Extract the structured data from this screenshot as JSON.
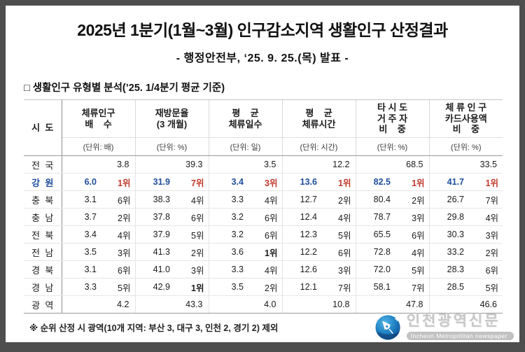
{
  "header": {
    "title": "2025년 1분기(1월~3월) 인구감소지역 생활인구 산정결과",
    "subtitle": "- 행정안전부, ‘25. 9. 25.(목) 발표 -"
  },
  "section": {
    "heading": "□ 생활인구 유형별 분석(’25. 1/4분기 평균 기준)"
  },
  "table": {
    "columns": [
      {
        "id": "sido",
        "title_lines": [
          "시  도"
        ],
        "unit": ""
      },
      {
        "id": "multiple",
        "title_lines": [
          "체류인구",
          "배    수"
        ],
        "unit": "(단위: 배)"
      },
      {
        "id": "revisit",
        "title_lines": [
          "재방문율",
          "(3 개월)"
        ],
        "unit": "(단위: %)"
      },
      {
        "id": "stay-days",
        "title_lines": [
          "평    균",
          "체류일수"
        ],
        "unit": "(단위: 일)"
      },
      {
        "id": "stay-hours",
        "title_lines": [
          "평    균",
          "체류시간"
        ],
        "unit": "(단위: 시간)"
      },
      {
        "id": "other-region",
        "title_lines": [
          "타 시 도",
          "거 주 자",
          "비    중"
        ],
        "unit": "(단위: %)"
      },
      {
        "id": "card-spend",
        "title_lines": [
          "체 류 인 구",
          "카드사용액",
          "비    중"
        ],
        "unit": "(단위: %)"
      }
    ],
    "rows": [
      {
        "region": "전  국",
        "highlight": false,
        "values": [
          "3.8",
          "39.3",
          "3.5",
          "12.2",
          "68.5",
          "33.5"
        ]
      },
      {
        "region": "강  원",
        "highlight": true,
        "cells": [
          [
            "6.0",
            "1위"
          ],
          [
            "31.9",
            "7위"
          ],
          [
            "3.4",
            "3위"
          ],
          [
            "13.6",
            "1위"
          ],
          [
            "82.5",
            "1위"
          ],
          [
            "41.7",
            "1위"
          ]
        ]
      },
      {
        "region": "충  북",
        "highlight": false,
        "cells": [
          [
            "3.1",
            "6위"
          ],
          [
            "38.3",
            "4위"
          ],
          [
            "3.3",
            "4위"
          ],
          [
            "12.7",
            "2위"
          ],
          [
            "80.4",
            "2위"
          ],
          [
            "26.7",
            "7위"
          ]
        ]
      },
      {
        "region": "충  남",
        "highlight": false,
        "cells": [
          [
            "3.7",
            "2위"
          ],
          [
            "37.8",
            "6위"
          ],
          [
            "3.2",
            "6위"
          ],
          [
            "12.4",
            "4위"
          ],
          [
            "78.7",
            "3위"
          ],
          [
            "29.8",
            "4위"
          ]
        ]
      },
      {
        "region": "전  북",
        "highlight": false,
        "cells": [
          [
            "3.4",
            "4위"
          ],
          [
            "37.9",
            "5위"
          ],
          [
            "3.2",
            "6위"
          ],
          [
            "12.3",
            "5위"
          ],
          [
            "65.5",
            "6위"
          ],
          [
            "30.3",
            "3위"
          ]
        ]
      },
      {
        "region": "전  남",
        "highlight": false,
        "cells": [
          [
            "3.5",
            "3위"
          ],
          [
            "41.3",
            "2위"
          ],
          [
            "3.6",
            "1위"
          ],
          [
            "12.2",
            "6위"
          ],
          [
            "72.8",
            "4위"
          ],
          [
            "33.2",
            "2위"
          ]
        ]
      },
      {
        "region": "경  북",
        "highlight": false,
        "cells": [
          [
            "3.1",
            "6위"
          ],
          [
            "41.0",
            "3위"
          ],
          [
            "3.3",
            "4위"
          ],
          [
            "12.6",
            "3위"
          ],
          [
            "72.0",
            "5위"
          ],
          [
            "28.3",
            "6위"
          ]
        ]
      },
      {
        "region": "경  남",
        "highlight": false,
        "cells": [
          [
            "3.3",
            "5위"
          ],
          [
            "42.9",
            "1위"
          ],
          [
            "3.5",
            "2위"
          ],
          [
            "12.1",
            "7위"
          ],
          [
            "58.1",
            "7위"
          ],
          [
            "28.5",
            "5위"
          ]
        ]
      },
      {
        "region": "광  역",
        "highlight": false,
        "values": [
          "4.2",
          "43.3",
          "4.0",
          "10.8",
          "47.8",
          "46.6"
        ]
      }
    ]
  },
  "footnote": {
    "text": "※ 순위 산정 시 광역(10개 지역: 부산 3, 대구 3, 인천 2, 경기 2) 제외"
  },
  "watermark": {
    "name_ko": "인천광역신문",
    "name_en": "Incheon Metropolitan newspaper"
  },
  "colors": {
    "frame": "#4e4e4e",
    "highlight_value": "#1e4e9c",
    "highlight_rank": "#c0392b"
  }
}
